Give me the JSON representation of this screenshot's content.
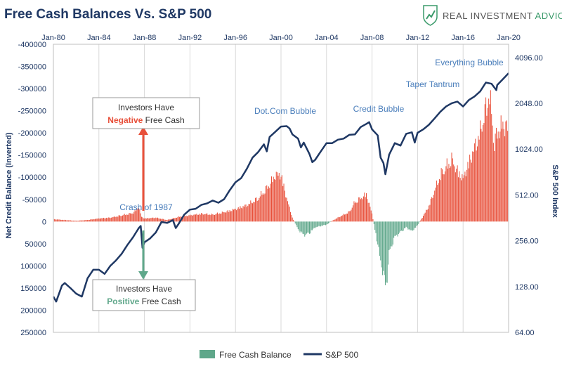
{
  "header": {
    "title": "Free Cash Balances Vs. S&P 500",
    "brand_prefix": "REAL INVESTMENT",
    "brand_suffix": "ADVICE"
  },
  "chart_data": {
    "type": "bar+line",
    "title": "Free Cash Balances Vs. S&P 500",
    "x_ticks": [
      "Jan-80",
      "Jan-84",
      "Jan-88",
      "Jan-92",
      "Jan-96",
      "Jan-00",
      "Jan-04",
      "Jan-08",
      "Jan-12",
      "Jan-16",
      "Jan-20"
    ],
    "x_range": [
      1980.0,
      2020.0
    ],
    "left_axis": {
      "label": "Net Credit Balance (Inverted)",
      "inverted": true,
      "range": [
        -400000,
        250000
      ],
      "ticks": [
        "-400000",
        "-350000",
        "-300000",
        "-250000",
        "-200000",
        "-150000",
        "-100000",
        "-50000",
        "0",
        "50000",
        "100000",
        "150000",
        "200000",
        "250000"
      ],
      "tick_values": [
        -400000,
        -350000,
        -300000,
        -250000,
        -200000,
        -150000,
        -100000,
        -50000,
        0,
        50000,
        100000,
        150000,
        200000,
        250000
      ]
    },
    "right_axis": {
      "label": "S&P 500 Index",
      "scale": "log2",
      "range": [
        64,
        5000
      ],
      "ticks": [
        "4096.00",
        "2048.00",
        "1024.00",
        "512.00",
        "256.00",
        "128.00",
        "64.00"
      ],
      "tick_values": [
        4096,
        2048,
        1024,
        512,
        256,
        128,
        64
      ]
    },
    "grid": "vertical",
    "colors": {
      "negative_cash": "#e8503a",
      "positive_cash": "#5fa78a",
      "sp500": "#1f3864",
      "annotation": "#4a7ebb"
    },
    "series": [
      {
        "name": "Free Cash Balance",
        "kind": "bar",
        "axis": "left",
        "x": [
          1980.0,
          1981.0,
          1982.0,
          1983.0,
          1984.0,
          1985.0,
          1986.0,
          1987.0,
          1987.5,
          1987.75,
          1988.0,
          1989.0,
          1990.0,
          1991.0,
          1992.0,
          1993.0,
          1994.0,
          1995.0,
          1996.0,
          1997.0,
          1998.0,
          1999.0,
          1999.5,
          2000.0,
          2000.25,
          2000.5,
          2001.0,
          2001.5,
          2002.0,
          2002.5,
          2003.0,
          2004.0,
          2004.5,
          2005.0,
          2006.0,
          2006.5,
          2007.0,
          2007.5,
          2008.0,
          2008.5,
          2008.75,
          2009.0,
          2009.25,
          2009.5,
          2010.0,
          2011.0,
          2011.5,
          2012.0,
          2013.0,
          2013.5,
          2014.0,
          2014.5,
          2015.0,
          2015.5,
          2016.0,
          2016.5,
          2017.0,
          2017.5,
          2018.0,
          2018.25,
          2018.5,
          2018.75,
          2019.0,
          2019.5,
          2020.0
        ],
        "values": [
          -6000,
          -4000,
          -2000,
          -4000,
          -8000,
          -10000,
          -16000,
          -22000,
          -38000,
          -12000,
          -8000,
          -10000,
          -4000,
          -12000,
          -16000,
          -20000,
          -18000,
          -24000,
          -32000,
          -42000,
          -60000,
          -95000,
          -120000,
          -120000,
          -90000,
          -60000,
          -10000,
          20000,
          35000,
          30000,
          15000,
          8000,
          -2000,
          -10000,
          -25000,
          -50000,
          -60000,
          -70000,
          -20000,
          60000,
          100000,
          140000,
          170000,
          80000,
          40000,
          15000,
          25000,
          10000,
          -40000,
          -80000,
          -120000,
          -140000,
          -160000,
          -130000,
          -110000,
          -150000,
          -190000,
          -230000,
          -290000,
          -330000,
          -280000,
          -200000,
          -230000,
          -250000,
          -240000
        ]
      },
      {
        "name": "S&P 500",
        "kind": "line",
        "axis": "right",
        "x": [
          1980.0,
          1980.25,
          1980.75,
          1981.0,
          1981.5,
          1982.0,
          1982.5,
          1983.0,
          1983.5,
          1984.0,
          1984.5,
          1985.0,
          1985.5,
          1986.0,
          1986.5,
          1987.0,
          1987.5,
          1987.67,
          1987.83,
          1988.0,
          1988.5,
          1989.0,
          1989.5,
          1990.0,
          1990.5,
          1990.75,
          1991.0,
          1991.5,
          1992.0,
          1992.5,
          1993.0,
          1993.5,
          1994.0,
          1994.5,
          1995.0,
          1995.5,
          1996.0,
          1996.5,
          1997.0,
          1997.5,
          1998.0,
          1998.5,
          1998.75,
          1999.0,
          1999.5,
          2000.0,
          2000.5,
          2000.75,
          2001.0,
          2001.5,
          2001.75,
          2002.0,
          2002.5,
          2002.75,
          2003.0,
          2003.5,
          2004.0,
          2004.5,
          2005.0,
          2005.5,
          2006.0,
          2006.5,
          2007.0,
          2007.5,
          2007.75,
          2008.0,
          2008.5,
          2008.75,
          2009.0,
          2009.17,
          2009.5,
          2010.0,
          2010.5,
          2011.0,
          2011.5,
          2011.75,
          2012.0,
          2012.5,
          2013.0,
          2013.5,
          2014.0,
          2014.5,
          2015.0,
          2015.5,
          2016.0,
          2016.5,
          2017.0,
          2017.5,
          2018.0,
          2018.5,
          2018.92,
          2019.0,
          2019.5,
          2020.0
        ],
        "values": [
          110,
          102,
          130,
          135,
          125,
          115,
          110,
          145,
          165,
          165,
          155,
          175,
          190,
          210,
          240,
          270,
          310,
          320,
          230,
          250,
          265,
          290,
          340,
          335,
          350,
          310,
          330,
          380,
          410,
          415,
          440,
          450,
          470,
          455,
          480,
          550,
          620,
          660,
          760,
          900,
          980,
          1100,
          990,
          1230,
          1330,
          1440,
          1450,
          1400,
          1280,
          1200,
          1050,
          1130,
          950,
          840,
          870,
          990,
          1120,
          1120,
          1180,
          1200,
          1270,
          1280,
          1430,
          1500,
          1540,
          1380,
          1260,
          900,
          830,
          700,
          940,
          1120,
          1080,
          1290,
          1320,
          1130,
          1310,
          1380,
          1480,
          1630,
          1800,
          1950,
          2050,
          2100,
          1950,
          2150,
          2270,
          2450,
          2800,
          2750,
          2500,
          2700,
          2950,
          3230
        ]
      }
    ],
    "annotations": [
      "Crash of 1987",
      "Dot.Com Bubble",
      "Credit Bubble",
      "Taper Tantrum",
      "Everything Bubble"
    ],
    "callouts": {
      "negative": {
        "line1": "Investors Have",
        "highlight": "Negative",
        "rest": " Free Cash"
      },
      "positive": {
        "line1": "Investors Have",
        "highlight": "Positive",
        "rest": " Free Cash"
      }
    },
    "legend": {
      "position": "bottom",
      "items": [
        {
          "name": "Free Cash Balance",
          "color": "#5fa78a",
          "symbol": "bar"
        },
        {
          "name": "S&P 500",
          "color": "#1f3864",
          "symbol": "line"
        }
      ]
    }
  }
}
